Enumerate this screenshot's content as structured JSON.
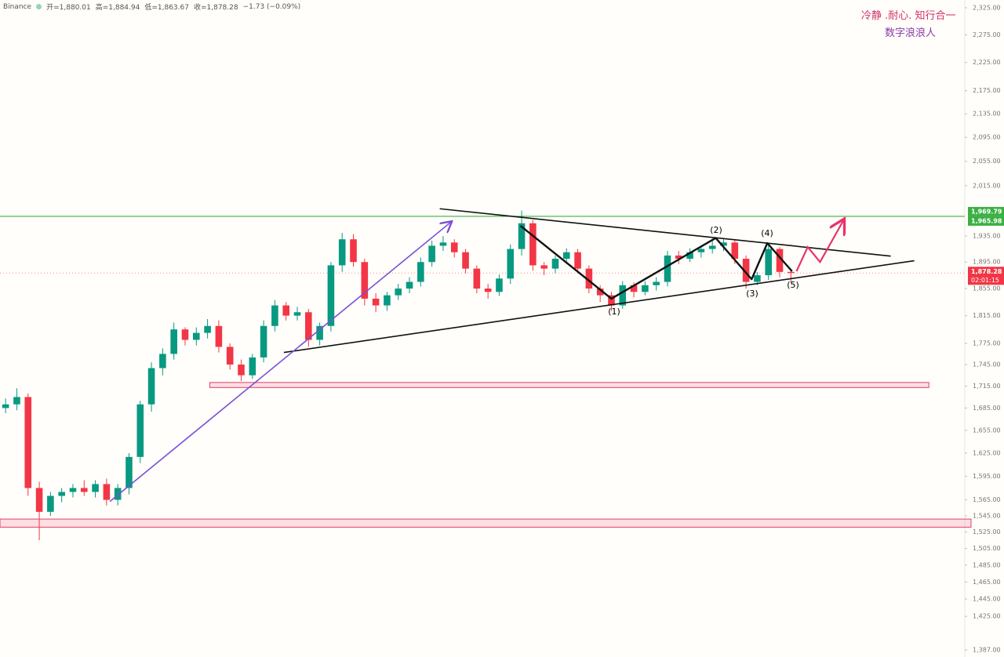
{
  "header": {
    "exchange": "Binance",
    "open": "开=1,880.01",
    "high": "高=1,884.94",
    "low": "低=1,863.67",
    "close": "收=1,878.28",
    "change": "−1.73 (−0.09%)"
  },
  "annotation": {
    "line1": "冷静 .耐心. 知行合一",
    "line2": "数字浪浪人"
  },
  "chart_data": {
    "type": "candlestick",
    "log_scale": true,
    "xlim": [
      -0.5,
      85.5
    ],
    "ylim": [
      1387,
      2325
    ],
    "up_color": "#089981",
    "down_color": "#f23645",
    "open": [
      1685,
      1690,
      1700,
      1580,
      1550,
      1570,
      1575,
      1580,
      1575,
      1585,
      1565,
      1580,
      1620,
      1690,
      1740,
      1760,
      1795,
      1780,
      1790,
      1800,
      1770,
      1745,
      1730,
      1755,
      1800,
      1830,
      1815,
      1820,
      1780,
      1800,
      1890,
      1930,
      1895,
      1840,
      1830,
      1845,
      1855,
      1865,
      1895,
      1920,
      1925,
      1910,
      1885,
      1855,
      1850,
      1870,
      1915,
      1955,
      1890,
      1885,
      1900,
      1910,
      1885,
      1855,
      1845,
      1830,
      1860,
      1850,
      1860,
      1865,
      1905,
      1900,
      1910,
      1915,
      1920,
      1925,
      1900,
      1865,
      1875,
      1915,
      1880.01
    ],
    "high": [
      1698,
      1712,
      1705,
      1588,
      1575,
      1580,
      1585,
      1590,
      1590,
      1592,
      1585,
      1625,
      1695,
      1748,
      1768,
      1805,
      1798,
      1798,
      1810,
      1808,
      1775,
      1752,
      1760,
      1808,
      1838,
      1835,
      1828,
      1825,
      1805,
      1895,
      1940,
      1938,
      1900,
      1848,
      1850,
      1862,
      1872,
      1902,
      1928,
      1935,
      1930,
      1915,
      1890,
      1862,
      1876,
      1922,
      1975,
      1960,
      1895,
      1905,
      1916,
      1915,
      1890,
      1860,
      1850,
      1866,
      1864,
      1866,
      1872,
      1912,
      1912,
      1916,
      1920,
      1928,
      1932,
      1930,
      1905,
      1880,
      1922,
      1918,
      1884.94
    ],
    "low": [
      1678,
      1682,
      1570,
      1515,
      1545,
      1562,
      1568,
      1570,
      1568,
      1558,
      1558,
      1572,
      1612,
      1680,
      1730,
      1752,
      1772,
      1772,
      1782,
      1762,
      1738,
      1722,
      1725,
      1748,
      1792,
      1808,
      1808,
      1770,
      1772,
      1792,
      1880,
      1888,
      1830,
      1820,
      1822,
      1838,
      1848,
      1858,
      1888,
      1912,
      1902,
      1878,
      1848,
      1840,
      1844,
      1862,
      1905,
      1882,
      1875,
      1878,
      1892,
      1878,
      1848,
      1835,
      1822,
      1825,
      1842,
      1845,
      1852,
      1858,
      1892,
      1895,
      1902,
      1908,
      1912,
      1892,
      1855,
      1860,
      1868,
      1872,
      1863.67
    ],
    "close": [
      1690,
      1700,
      1580,
      1550,
      1570,
      1575,
      1580,
      1575,
      1585,
      1565,
      1580,
      1620,
      1690,
      1740,
      1760,
      1795,
      1780,
      1790,
      1800,
      1770,
      1745,
      1730,
      1755,
      1800,
      1830,
      1815,
      1820,
      1780,
      1800,
      1890,
      1930,
      1895,
      1840,
      1830,
      1845,
      1855,
      1865,
      1895,
      1920,
      1925,
      1910,
      1885,
      1855,
      1850,
      1870,
      1915,
      1955,
      1890,
      1885,
      1900,
      1910,
      1885,
      1855,
      1845,
      1830,
      1860,
      1850,
      1860,
      1865,
      1905,
      1900,
      1910,
      1915,
      1920,
      1925,
      1900,
      1865,
      1875,
      1915,
      1880,
      1878.28
    ],
    "yticks": [
      {
        "value": 2325,
        "label": "2,325.00"
      },
      {
        "value": 2275,
        "label": "2,275.00"
      },
      {
        "value": 2225,
        "label": "2,225.00"
      },
      {
        "value": 2175,
        "label": "2,175.00"
      },
      {
        "value": 2135,
        "label": "2,135.00"
      },
      {
        "value": 2095,
        "label": "2,095.00"
      },
      {
        "value": 2055,
        "label": "2,055.00"
      },
      {
        "value": 2015,
        "label": "2,015.00"
      },
      {
        "value": 1935,
        "label": "1,935.00"
      },
      {
        "value": 1895,
        "label": "1,895.00"
      },
      {
        "value": 1855,
        "label": "1,855.00"
      },
      {
        "value": 1815,
        "label": "1,815.00"
      },
      {
        "value": 1775,
        "label": "1,775.00"
      },
      {
        "value": 1745,
        "label": "1,745.00"
      },
      {
        "value": 1715,
        "label": "1,715.00"
      },
      {
        "value": 1685,
        "label": "1,685.00"
      },
      {
        "value": 1655,
        "label": "1,655.00"
      },
      {
        "value": 1625,
        "label": "1,625.00"
      },
      {
        "value": 1595,
        "label": "1,595.00"
      },
      {
        "value": 1565,
        "label": "1,565.00"
      },
      {
        "value": 1545,
        "label": "1,545.00"
      },
      {
        "value": 1525,
        "label": "1,525.00"
      },
      {
        "value": 1505,
        "label": "1,505.00"
      },
      {
        "value": 1485,
        "label": "1,485.00"
      },
      {
        "value": 1465,
        "label": "1,465.00"
      },
      {
        "value": 1445,
        "label": "1,445.00"
      },
      {
        "value": 1425,
        "label": "1,425.00"
      },
      {
        "value": 1387,
        "label": "1,387.00"
      }
    ],
    "level_labels": [
      {
        "value": 1969.79,
        "label": "1,969.79"
      },
      {
        "value": 1965.98,
        "label": "1,965.98"
      }
    ],
    "last_price": {
      "value": 1878.28,
      "label": "1,878.28",
      "countdown": "02:01:15"
    },
    "zones": [
      [
        1713,
        1720
      ],
      [
        1531,
        1541
      ]
    ],
    "trendlines": [
      [
        [
          38.7,
          1978
        ],
        [
          78.9,
          1904
        ]
      ],
      [
        [
          24.8,
          1762
        ],
        [
          81,
          1897
        ]
      ]
    ],
    "impulse": [
      [
        9.3,
        1563
      ],
      [
        39.7,
        1957
      ]
    ],
    "wave": [
      [
        45.9,
        1951
      ],
      [
        54,
        1840
      ],
      [
        63.3,
        1932
      ],
      [
        66.5,
        1869
      ],
      [
        67.9,
        1924
      ],
      [
        70.1,
        1881
      ]
    ],
    "projection": [
      [
        70.5,
        1881
      ],
      [
        71.5,
        1918
      ],
      [
        72.6,
        1895
      ],
      [
        74.7,
        1960
      ]
    ],
    "wave_labels": [
      "(1)",
      "(2)",
      "(3)",
      "(4)",
      "(5)"
    ]
  }
}
